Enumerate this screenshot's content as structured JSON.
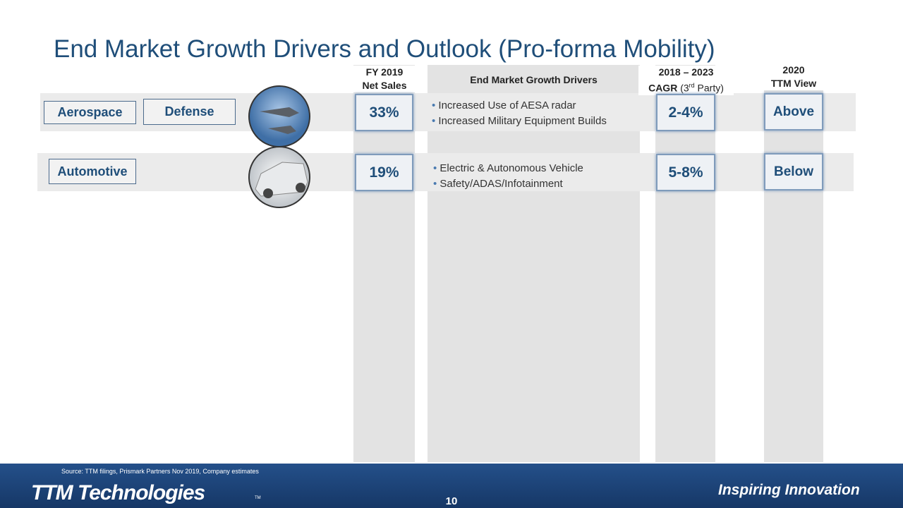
{
  "header": {
    "title": "End Market Growth Drivers and Outlook (Pro-forma Mobility)"
  },
  "columns": {
    "sales": [
      "FY 2019",
      "Net Sales"
    ],
    "drivers": "End Market Growth Drivers",
    "cagr": {
      "line1": "2018 – 2023",
      "bold": "CAGR",
      "pre": "(3",
      "sup": "rd",
      "post": " Party)"
    },
    "view": [
      "2020",
      "TTM View"
    ]
  },
  "rows": [
    {
      "segments": [
        "Aerospace",
        "Defense"
      ],
      "sales": "33%",
      "drivers": [
        "Increased Use of AESA radar",
        "Increased Military Equipment Builds"
      ],
      "cagr": "2-4%",
      "view": "Above"
    },
    {
      "segments": [
        "Automotive"
      ],
      "sales": "19%",
      "drivers": [
        "Electric & Autonomous Vehicle",
        "Safety/ADAS/Infotainment"
      ],
      "cagr": "5-8%",
      "view": "Below"
    }
  ],
  "footer": {
    "source": "Source: TTM filings, Prismark Partners Nov 2019, Company estimates",
    "logo": "TTM Technologies",
    "tm": "TM",
    "tagline": "Inspiring Innovation",
    "page": "10"
  }
}
